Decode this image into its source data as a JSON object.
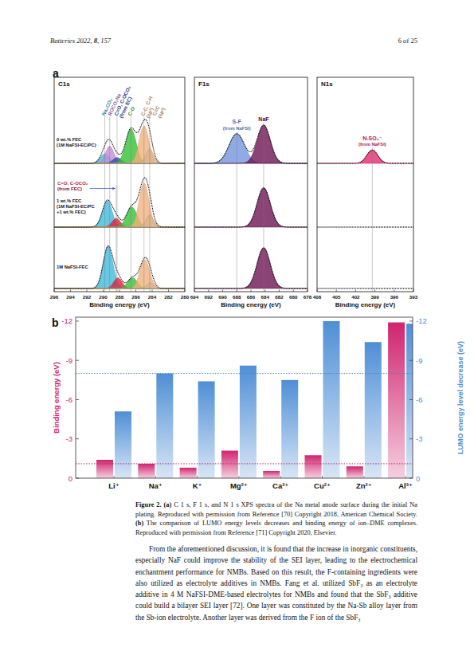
{
  "header": {
    "left": [
      "Batteries 2022, ",
      "8",
      ", 157"
    ],
    "right": "6 of 25"
  },
  "figure_a": {
    "label": "a",
    "rows": [
      {
        "lines": [
          "0 wt.% FEC",
          "(1M NaFSI-EC/PC)"
        ]
      },
      {
        "lines": [
          "1 wt.% FEC",
          "(1M NaFSI-EC/PC",
          "+1 wt.% FEC)"
        ]
      },
      {
        "lines": [
          "1M NaFSI-FEC"
        ]
      }
    ],
    "panels": [
      {
        "title": "C1s",
        "xlabel": "Binding energy (eV)",
        "xlim": [
          296,
          280
        ],
        "xticks": [
          296,
          294,
          292,
          290,
          288,
          286,
          284,
          282,
          280
        ],
        "rows": [
          {
            "peaks": [
              {
                "label": [
                  "Na₂CO₃"
                ],
                "center": 289.8,
                "height": 0.2,
                "fwhm": 1.3,
                "color": "#3cb9dc"
              },
              {
                "label": [
                  "ROCO₂Na"
                ],
                "center": 289.2,
                "height": 0.36,
                "fwhm": 1.2,
                "color": "#c58bd6"
              },
              {
                "label": [
                  "C=O, C-OCO₂",
                  "(from EC)"
                ],
                "center": 288.3,
                "height": 0.12,
                "fwhm": 1.2,
                "color": "#3048b0"
              },
              {
                "label": [
                  "C-O"
                ],
                "center": 286.6,
                "height": 0.72,
                "fwhm": 1.5,
                "color": "#2fc02f"
              },
              {
                "label": [
                  "C-C, C-H",
                  "(sp³)"
                ],
                "center": 285.0,
                "height": 0.78,
                "fwhm": 1.4,
                "color": "#f2b07c"
              },
              {
                "label": [
                  "C=C",
                  "(sp²)"
                ],
                "center": 284.3,
                "height": 0.3,
                "fwhm": 1.1,
                "color": "#d9b48e"
              }
            ]
          },
          {
            "peaks": [
              {
                "center": 289.5,
                "height": 0.55,
                "fwhm": 1.4,
                "color": "#3cb9dc"
              },
              {
                "label": [
                  "C=O, C-OCO₂",
                  "(from FEC)"
                ],
                "center": 288.4,
                "height": 0.18,
                "fwhm": 1.2,
                "color": "#e31b3b"
              },
              {
                "center": 286.5,
                "height": 0.42,
                "fwhm": 1.5,
                "color": "#2fc02f"
              },
              {
                "center": 285.0,
                "height": 0.92,
                "fwhm": 1.4,
                "color": "#f2b07c"
              },
              {
                "center": 284.3,
                "height": 0.25,
                "fwhm": 1.1,
                "color": "#d9b48e"
              }
            ]
          },
          {
            "peaks": [
              {
                "center": 289.4,
                "height": 0.88,
                "fwhm": 1.4,
                "color": "#3cb9dc"
              },
              {
                "center": 288.2,
                "height": 0.22,
                "fwhm": 1.2,
                "color": "#e31b3b"
              },
              {
                "center": 286.4,
                "height": 0.22,
                "fwhm": 1.4,
                "color": "#2fc02f"
              },
              {
                "center": 284.9,
                "height": 0.6,
                "fwhm": 1.4,
                "color": "#f2b07c"
              },
              {
                "center": 284.2,
                "height": 0.12,
                "fwhm": 1.1,
                "color": "#d9b48e"
              }
            ]
          }
        ]
      },
      {
        "title": "F1s",
        "xlabel": "Binding energy (eV)",
        "xlim": [
          694,
          678
        ],
        "xticks": [
          694,
          692,
          690,
          688,
          686,
          684,
          682,
          680,
          678
        ],
        "rows": [
          {
            "peaks": [
              {
                "label": [
                  "S-F",
                  "(from NaFSI)"
                ],
                "center": 688.0,
                "height": 0.62,
                "fwhm": 2.6,
                "color": "#6f92dc"
              },
              {
                "label": [
                  "NaF"
                ],
                "center": 684.2,
                "height": 0.8,
                "fwhm": 2.2,
                "color": "#6a0f4f"
              }
            ]
          },
          {
            "peaks": [
              {
                "center": 684.2,
                "height": 0.82,
                "fwhm": 2.2,
                "color": "#6a0f4f"
              }
            ]
          },
          {
            "peaks": [
              {
                "center": 684.2,
                "height": 0.85,
                "fwhm": 2.2,
                "color": "#6a0f4f"
              }
            ]
          }
        ]
      },
      {
        "title": "N1s",
        "xlabel": "Binding energy (eV)",
        "xlim": [
          408,
          393
        ],
        "xticks": [
          408,
          405,
          402,
          399,
          396,
          393
        ],
        "rows": [
          {
            "peaks": [
              {
                "label": [
                  "N-SO₂⁻",
                  "(from NaFSI)"
                ],
                "center": 399.4,
                "height": 0.28,
                "fwhm": 2.0,
                "color": "#e6246c"
              }
            ]
          },
          {
            "peaks": []
          },
          {
            "peaks": []
          }
        ]
      }
    ]
  },
  "chart_data": {
    "type": "bar",
    "title": "b",
    "categories": [
      "Li⁺",
      "Na⁺",
      "K⁺",
      "Mg²⁺",
      "Ca²⁺",
      "Cu²⁺",
      "Zn²⁺",
      "Al³⁺"
    ],
    "ylabel": "Binding energy (eV)",
    "y2label": "LUMO energy level decrease (eV)",
    "series": [
      {
        "color": "#d0246f",
        "values": [
          -1.4,
          -1.1,
          -0.8,
          -2.1,
          -0.55,
          -1.75,
          -0.9,
          -11.9
        ]
      },
      {
        "color": "#4f8fd6",
        "axis": "y2",
        "values": [
          -5.1,
          -8.0,
          -7.4,
          -8.6,
          -7.5,
          -12.0,
          -10.4,
          -11.8
        ]
      }
    ],
    "ylim": [
      0,
      -12.3
    ],
    "yticks": [
      -12,
      -9,
      -6,
      -3,
      0
    ],
    "y2lim": [
      0,
      -12.3
    ],
    "y2ticks": [
      -12,
      -9,
      -6,
      -3,
      0
    ],
    "grid": false
  },
  "caption": {
    "label": "Figure 2.",
    "parts": [
      {
        "tag": "(a)",
        "text": " C 1 s, F 1 s, and N 1 s XPS spectra of the Na metal anode surface during the initial Na plating. Reproduced with permission from Reference [70] Copyright 2018, American Chemical Society. "
      },
      {
        "tag": "(b)",
        "text": " The comparison of LUMO energy levels decreases and binding energy of ion–DME complexes. Reproduced with permission from Reference [71] Copyright 2020, Elsevier."
      }
    ]
  },
  "body": {
    "paragraphs": [
      "From the aforementioned discussion, it is found that the increase in inorganic constituents, especially NaF could improve the stability of the SEI layer, leading to the electrochemical enchantment performance for NMBs. Based on this result, the F-containing ingredients were also utilized as electrolyte additives in NMBs. Fang et al. utilized SbF₃ as an electrolyte additive in 4 M NaFSI-DME-based electrolytes for NMBs and found that the SbF₃ additive could build a bilayer SEI layer [72]. One layer was constituted by the Na-Sb alloy layer from the Sb-ion electrolyte. Another layer was derived from the F ion of the SbF₃"
    ]
  }
}
